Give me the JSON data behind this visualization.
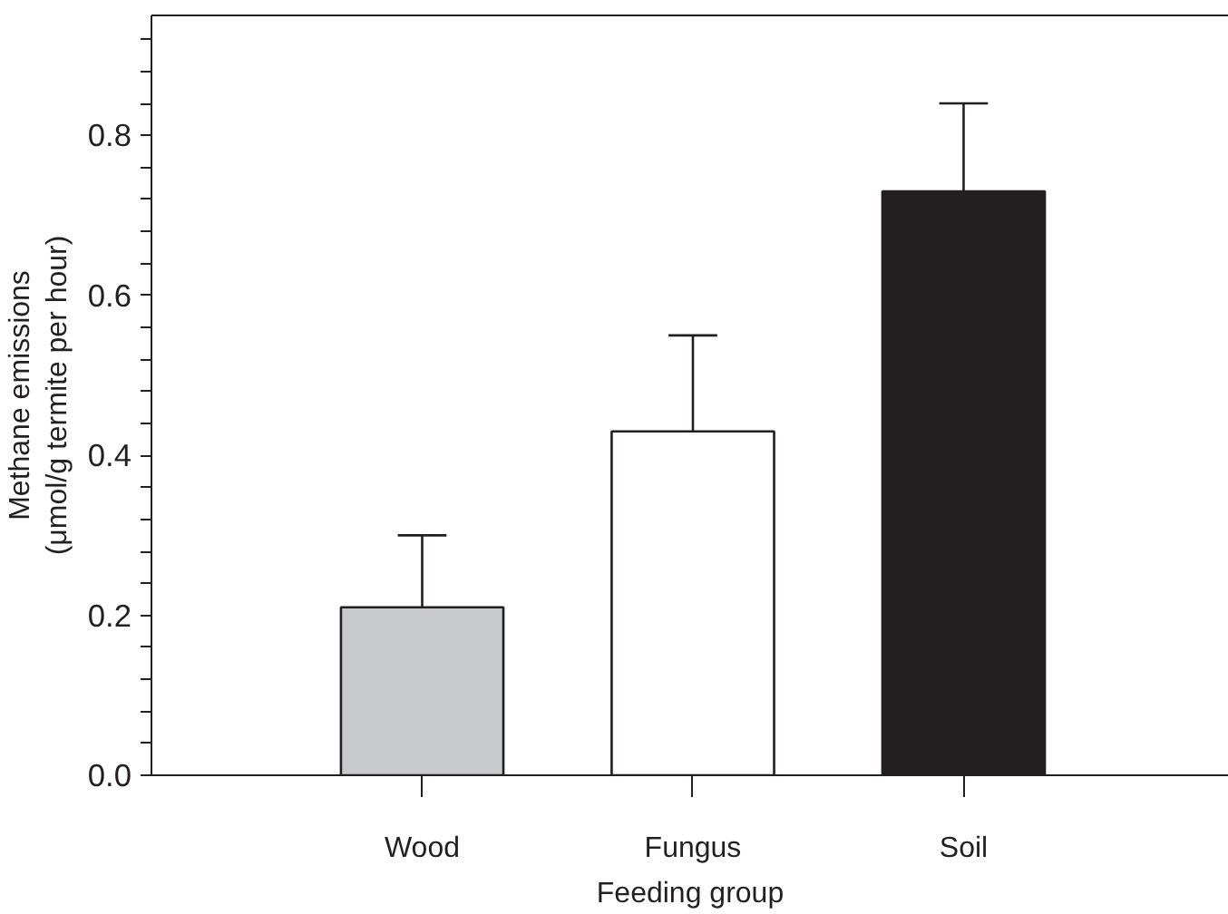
{
  "chart_data": {
    "type": "bar",
    "xlabel": "Feeding group",
    "ylabel": "Methane emissions\n(μmol/g termite per hour)",
    "categories": [
      "Wood",
      "Fungus",
      "Soil"
    ],
    "values": [
      0.21,
      0.43,
      0.73
    ],
    "colors": [
      "#c8c9cb",
      "#ffffff",
      "#231f20"
    ],
    "errors": [
      [
        0.21,
        0.3
      ],
      [
        0.43,
        0.55
      ],
      [
        0.73,
        0.84
      ]
    ],
    "ylim": [
      0,
      0.95
    ],
    "yticks": [
      {
        "value": 0.0,
        "label": "0.0"
      },
      {
        "value": 0.04,
        "label": null
      },
      {
        "value": 0.08,
        "label": null
      },
      {
        "value": 0.12,
        "label": null
      },
      {
        "value": 0.16,
        "label": null
      },
      {
        "value": 0.2,
        "label": "0.2"
      },
      {
        "value": 0.24,
        "label": null
      },
      {
        "value": 0.28,
        "label": null
      },
      {
        "value": 0.32,
        "label": null
      },
      {
        "value": 0.36,
        "label": null
      },
      {
        "value": 0.4,
        "label": "0.4"
      },
      {
        "value": 0.44,
        "label": null
      },
      {
        "value": 0.48,
        "label": null
      },
      {
        "value": 0.52,
        "label": null
      },
      {
        "value": 0.56,
        "label": null
      },
      {
        "value": 0.6,
        "label": "0.6"
      },
      {
        "value": 0.64,
        "label": null
      },
      {
        "value": 0.68,
        "label": null
      },
      {
        "value": 0.72,
        "label": null
      },
      {
        "value": 0.76,
        "label": null
      },
      {
        "value": 0.8,
        "label": "0.8"
      },
      {
        "value": 0.84,
        "label": null
      },
      {
        "value": 0.88,
        "label": null
      },
      {
        "value": 0.92,
        "label": null
      }
    ],
    "grid": false
  }
}
